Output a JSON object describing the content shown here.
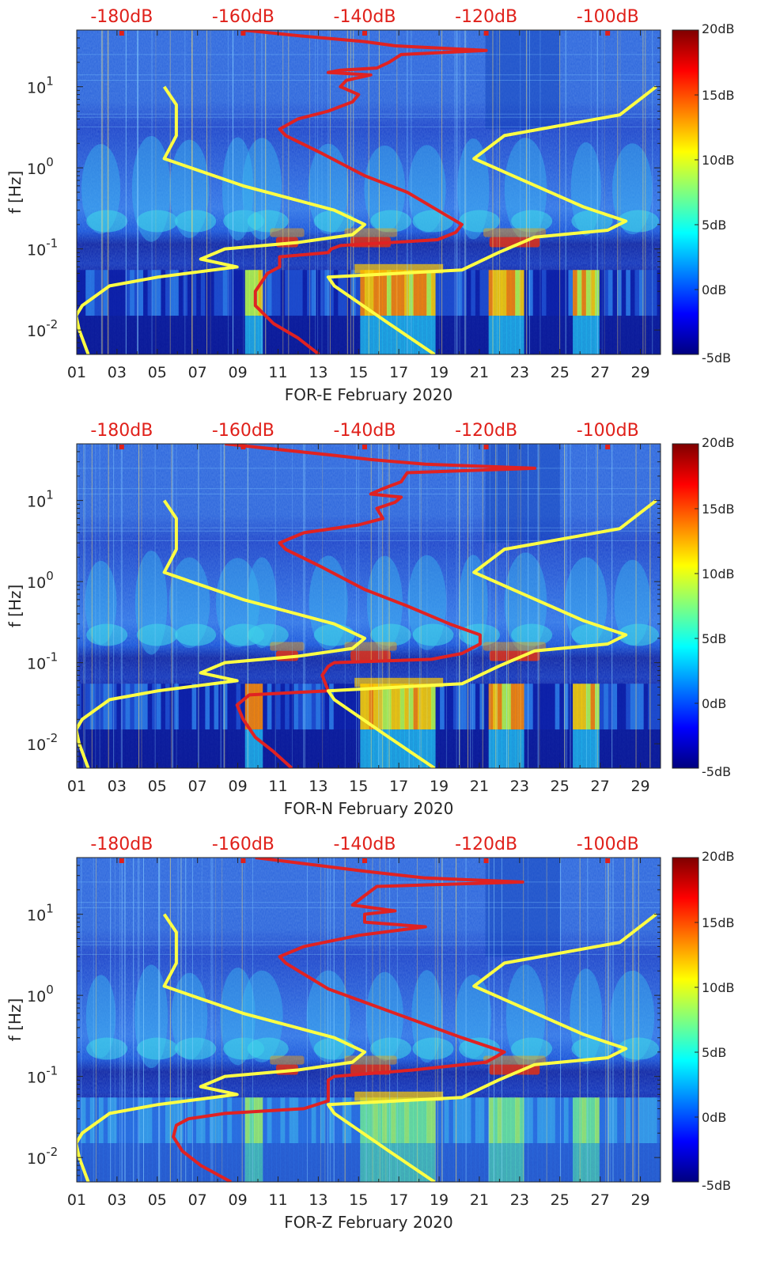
{
  "colors": {
    "background": "#00007f",
    "spectrogram_mid": "#1f5fe0",
    "red_curve": "#e02222",
    "yellow_curve": "#ffff44",
    "top_axis_text": "#e0201a",
    "axis_text": "#262626"
  },
  "chart_data": [
    {
      "type": "heatmap",
      "title": "",
      "xlabel": "FOR-E February 2020",
      "ylabel": "f [Hz]",
      "xlim": [
        1,
        30
      ],
      "ylim": [
        0.005,
        50
      ],
      "yscale": "log",
      "x_tick_labels": [
        "01",
        "03",
        "05",
        "07",
        "09",
        "11",
        "13",
        "15",
        "17",
        "19",
        "21",
        "23",
        "25",
        "27",
        "29"
      ],
      "x_tick_values": [
        1,
        3,
        5,
        7,
        9,
        11,
        13,
        15,
        17,
        19,
        21,
        23,
        25,
        27,
        29
      ],
      "y_tick_labels": [
        "10^-2",
        "10^-1",
        "10^0",
        "10^1"
      ],
      "y_tick_values": [
        0.01,
        0.1,
        1,
        10
      ],
      "top_axis_labels": [
        "-180dB",
        "-160dB",
        "-140dB",
        "-120dB",
        "-100dB"
      ],
      "top_axis_values": [
        -180,
        -160,
        -140,
        -120,
        -100
      ],
      "top_axis_lim": [
        -187.4,
        -91.3
      ],
      "colorbar": {
        "labels": [
          "20dB",
          "15dB",
          "10dB",
          "5dB",
          "0dB",
          "-5dB"
        ],
        "values": [
          20,
          15,
          10,
          5,
          0,
          -5
        ],
        "lim": [
          -5,
          20
        ]
      },
      "series": [
        {
          "name": "red-psd",
          "unit": "dB",
          "points": [
            [
              -147.5,
              0.005
            ],
            [
              -151,
              0.008
            ],
            [
              -155,
              0.012
            ],
            [
              -158,
              0.02
            ],
            [
              -158,
              0.03
            ],
            [
              -156,
              0.05
            ],
            [
              -154,
              0.06
            ],
            [
              -154,
              0.08
            ],
            [
              -146,
              0.09
            ],
            [
              -145.5,
              0.1
            ],
            [
              -144,
              0.11
            ],
            [
              -128,
              0.13
            ],
            [
              -125,
              0.16
            ],
            [
              -124,
              0.2
            ],
            [
              -128,
              0.3
            ],
            [
              -133,
              0.5
            ],
            [
              -140,
              0.8
            ],
            [
              -147,
              1.5
            ],
            [
              -153,
              2.5
            ],
            [
              -154,
              3
            ],
            [
              -151,
              4
            ],
            [
              -146,
              5
            ],
            [
              -142,
              6.5
            ],
            [
              -141,
              8
            ],
            [
              -144,
              10
            ],
            [
              -143,
              12
            ],
            [
              -139,
              14
            ],
            [
              -146,
              15
            ],
            [
              -144,
              16
            ],
            [
              -138,
              17
            ],
            [
              -136,
              20
            ],
            [
              -134,
              25
            ],
            [
              -120,
              28
            ],
            [
              -135,
              32
            ],
            [
              -140,
              36
            ],
            [
              -150,
              42
            ],
            [
              -160,
              50
            ]
          ]
        },
        {
          "name": "yellow-model-low",
          "unit": "dB",
          "points": [
            [
              -185.5,
              0.005
            ],
            [
              -187,
              0.01
            ],
            [
              -187.5,
              0.015
            ],
            [
              -186.5,
              0.02
            ],
            [
              -182,
              0.035
            ],
            [
              -174,
              0.045
            ],
            [
              -161,
              0.06
            ],
            [
              -167,
              0.075
            ],
            [
              -163,
              0.1
            ],
            [
              -151,
              0.12
            ],
            [
              -142,
              0.15
            ],
            [
              -140,
              0.2
            ],
            [
              -145,
              0.3
            ],
            [
              -160,
              0.6
            ],
            [
              -173,
              1.3
            ],
            [
              -171,
              2.5
            ],
            [
              -171,
              4
            ],
            [
              -171,
              6
            ],
            [
              -173,
              10
            ]
          ]
        },
        {
          "name": "yellow-model-high",
          "unit": "dB",
          "points": [
            [
              -128.5,
              0.005
            ],
            [
              -136,
              0.012
            ],
            [
              -145,
              0.035
            ],
            [
              -146,
              0.045
            ],
            [
              -124,
              0.055
            ],
            [
              -118,
              0.09
            ],
            [
              -112,
              0.14
            ],
            [
              -100,
              0.17
            ],
            [
              -97,
              0.22
            ],
            [
              -104,
              0.33
            ],
            [
              -122,
              1.3
            ],
            [
              -117,
              2.5
            ],
            [
              -98,
              4.5
            ],
            [
              -92,
              10
            ]
          ]
        }
      ]
    },
    {
      "type": "heatmap",
      "title": "",
      "xlabel": "FOR-N February 2020",
      "ylabel": "f [Hz]",
      "xlim": [
        1,
        30
      ],
      "ylim": [
        0.005,
        50
      ],
      "yscale": "log",
      "x_tick_labels": [
        "01",
        "03",
        "05",
        "07",
        "09",
        "11",
        "13",
        "15",
        "17",
        "19",
        "21",
        "23",
        "25",
        "27",
        "29"
      ],
      "x_tick_values": [
        1,
        3,
        5,
        7,
        9,
        11,
        13,
        15,
        17,
        19,
        21,
        23,
        25,
        27,
        29
      ],
      "y_tick_labels": [
        "10^-2",
        "10^-1",
        "10^0",
        "10^1"
      ],
      "y_tick_values": [
        0.01,
        0.1,
        1,
        10
      ],
      "top_axis_labels": [
        "-180dB",
        "-160dB",
        "-140dB",
        "-120dB",
        "-100dB"
      ],
      "top_axis_values": [
        -180,
        -160,
        -140,
        -120,
        -100
      ],
      "top_axis_lim": [
        -187.4,
        -91.3
      ],
      "colorbar": {
        "labels": [
          "20dB",
          "15dB",
          "10dB",
          "5dB",
          "0dB",
          "-5dB"
        ],
        "values": [
          20,
          15,
          10,
          5,
          0,
          -5
        ],
        "lim": [
          -5,
          20
        ]
      },
      "series": [
        {
          "name": "red-psd",
          "unit": "dB",
          "points": [
            [
              -152,
              0.005
            ],
            [
              -155,
              0.008
            ],
            [
              -158,
              0.012
            ],
            [
              -160,
              0.02
            ],
            [
              -161,
              0.03
            ],
            [
              -159,
              0.04
            ],
            [
              -146,
              0.045
            ],
            [
              -147,
              0.07
            ],
            [
              -146,
              0.09
            ],
            [
              -145,
              0.1
            ],
            [
              -129,
              0.11
            ],
            [
              -124,
              0.13
            ],
            [
              -121,
              0.17
            ],
            [
              -121,
              0.22
            ],
            [
              -126,
              0.3
            ],
            [
              -133,
              0.5
            ],
            [
              -140,
              0.8
            ],
            [
              -147,
              1.5
            ],
            [
              -153,
              2.5
            ],
            [
              -154,
              3
            ],
            [
              -150,
              4
            ],
            [
              -141,
              5
            ],
            [
              -137,
              6
            ],
            [
              -138,
              8
            ],
            [
              -135,
              9.5
            ],
            [
              -134,
              11
            ],
            [
              -139,
              12
            ],
            [
              -137,
              14
            ],
            [
              -134,
              17
            ],
            [
              -133,
              22
            ],
            [
              -112,
              25
            ],
            [
              -130,
              28
            ],
            [
              -139,
              32
            ],
            [
              -145,
              36
            ],
            [
              -163,
              50
            ]
          ]
        },
        {
          "name": "yellow-model-low",
          "unit": "dB",
          "points": [
            [
              -185.5,
              0.005
            ],
            [
              -187,
              0.01
            ],
            [
              -187.5,
              0.015
            ],
            [
              -186.5,
              0.02
            ],
            [
              -182,
              0.035
            ],
            [
              -174,
              0.045
            ],
            [
              -161,
              0.06
            ],
            [
              -167,
              0.075
            ],
            [
              -163,
              0.1
            ],
            [
              -151,
              0.12
            ],
            [
              -142,
              0.15
            ],
            [
              -140,
              0.2
            ],
            [
              -145,
              0.3
            ],
            [
              -160,
              0.6
            ],
            [
              -173,
              1.3
            ],
            [
              -171,
              2.5
            ],
            [
              -171,
              4
            ],
            [
              -171,
              6
            ],
            [
              -173,
              10
            ]
          ]
        },
        {
          "name": "yellow-model-high",
          "unit": "dB",
          "points": [
            [
              -128.5,
              0.005
            ],
            [
              -136,
              0.012
            ],
            [
              -145,
              0.035
            ],
            [
              -146,
              0.045
            ],
            [
              -124,
              0.055
            ],
            [
              -118,
              0.09
            ],
            [
              -112,
              0.14
            ],
            [
              -100,
              0.17
            ],
            [
              -97,
              0.22
            ],
            [
              -104,
              0.33
            ],
            [
              -122,
              1.3
            ],
            [
              -117,
              2.5
            ],
            [
              -98,
              4.5
            ],
            [
              -92,
              10
            ]
          ]
        }
      ]
    },
    {
      "type": "heatmap",
      "title": "",
      "xlabel": "FOR-Z February 2020",
      "ylabel": "f [Hz]",
      "xlim": [
        1,
        30
      ],
      "ylim": [
        0.005,
        50
      ],
      "yscale": "log",
      "x_tick_labels": [
        "01",
        "03",
        "05",
        "07",
        "09",
        "11",
        "13",
        "15",
        "17",
        "19",
        "21",
        "23",
        "25",
        "27",
        "29"
      ],
      "x_tick_values": [
        1,
        3,
        5,
        7,
        9,
        11,
        13,
        15,
        17,
        19,
        21,
        23,
        25,
        27,
        29
      ],
      "y_tick_labels": [
        "10^-2",
        "10^-1",
        "10^0",
        "10^1"
      ],
      "y_tick_values": [
        0.01,
        0.1,
        1,
        10
      ],
      "top_axis_labels": [
        "-180dB",
        "-160dB",
        "-140dB",
        "-120dB",
        "-100dB"
      ],
      "top_axis_values": [
        -180,
        -160,
        -140,
        -120,
        -100
      ],
      "top_axis_lim": [
        -187.4,
        -91.3
      ],
      "colorbar": {
        "labels": [
          "20dB",
          "15dB",
          "10dB",
          "5dB",
          "0dB",
          "-5dB"
        ],
        "values": [
          20,
          15,
          10,
          5,
          0,
          -5
        ],
        "lim": [
          -5,
          20
        ]
      },
      "series": [
        {
          "name": "red-psd",
          "unit": "dB",
          "points": [
            [
              -162,
              0.005
            ],
            [
              -167,
              0.008
            ],
            [
              -170,
              0.012
            ],
            [
              -171.5,
              0.018
            ],
            [
              -171,
              0.025
            ],
            [
              -169,
              0.03
            ],
            [
              -163,
              0.035
            ],
            [
              -150,
              0.04
            ],
            [
              -146,
              0.05
            ],
            [
              -146,
              0.09
            ],
            [
              -145,
              0.1
            ],
            [
              -132,
              0.12
            ],
            [
              -120,
              0.15
            ],
            [
              -117,
              0.2
            ],
            [
              -124,
              0.3
            ],
            [
              -135,
              0.6
            ],
            [
              -146,
              1.2
            ],
            [
              -153,
              2.5
            ],
            [
              -154,
              3
            ],
            [
              -150,
              4
            ],
            [
              -141,
              5.5
            ],
            [
              -130,
              7
            ],
            [
              -140,
              8
            ],
            [
              -140,
              10
            ],
            [
              -135,
              11
            ],
            [
              -142,
              13
            ],
            [
              -140,
              17
            ],
            [
              -138,
              22
            ],
            [
              -114,
              25
            ],
            [
              -130,
              28
            ],
            [
              -140,
              34
            ],
            [
              -158,
              50
            ]
          ]
        },
        {
          "name": "yellow-model-low",
          "unit": "dB",
          "points": [
            [
              -185.5,
              0.005
            ],
            [
              -187,
              0.01
            ],
            [
              -187.5,
              0.015
            ],
            [
              -186.5,
              0.02
            ],
            [
              -182,
              0.035
            ],
            [
              -174,
              0.045
            ],
            [
              -161,
              0.06
            ],
            [
              -167,
              0.075
            ],
            [
              -163,
              0.1
            ],
            [
              -151,
              0.12
            ],
            [
              -142,
              0.15
            ],
            [
              -140,
              0.2
            ],
            [
              -145,
              0.3
            ],
            [
              -160,
              0.6
            ],
            [
              -173,
              1.3
            ],
            [
              -171,
              2.5
            ],
            [
              -171,
              4
            ],
            [
              -171,
              6
            ],
            [
              -173,
              10
            ]
          ]
        },
        {
          "name": "yellow-model-high",
          "unit": "dB",
          "points": [
            [
              -128.5,
              0.005
            ],
            [
              -136,
              0.012
            ],
            [
              -145,
              0.035
            ],
            [
              -146,
              0.045
            ],
            [
              -124,
              0.055
            ],
            [
              -118,
              0.09
            ],
            [
              -112,
              0.14
            ],
            [
              -100,
              0.17
            ],
            [
              -97,
              0.22
            ],
            [
              -104,
              0.33
            ],
            [
              -122,
              1.3
            ],
            [
              -117,
              2.5
            ],
            [
              -98,
              4.5
            ],
            [
              -92,
              10
            ]
          ]
        }
      ]
    }
  ]
}
